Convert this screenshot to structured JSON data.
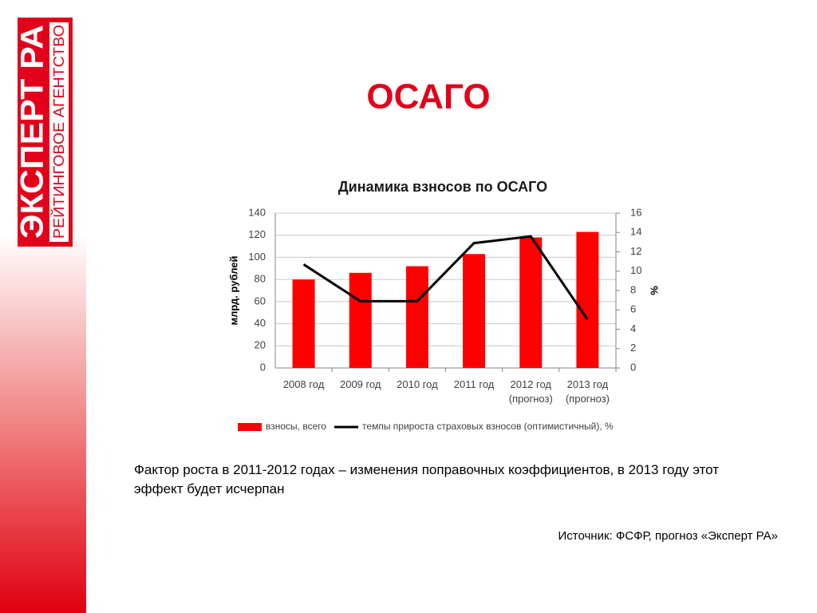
{
  "logo": {
    "name": "ЭКСПЕРТ РА",
    "tagline": "РЕЙТИНГОВОЕ АГЕНТСТВО"
  },
  "header": {
    "title": "ОСАГО"
  },
  "chart_data": {
    "type": "bar",
    "title": "Динамика взносов по ОСАГО",
    "categories": [
      "2008 год",
      "2009 год",
      "2010 год",
      "2011 год",
      "2012 год (прогноз)",
      "2013 год (прогноз)"
    ],
    "series": [
      {
        "name": "взносы, всего",
        "type": "bar",
        "color": "#ff0000",
        "values": [
          80,
          86,
          92,
          103,
          118,
          123
        ]
      },
      {
        "name": "темпы прироста страховых взносов (оптимистичный), %",
        "type": "line",
        "axis": "y2",
        "color": "#000000",
        "values": [
          10.7,
          6.9,
          6.9,
          12.9,
          13.6,
          5.0
        ]
      }
    ],
    "y_label": "млрд. рублей",
    "y2_label": "%",
    "ylim": [
      0,
      140
    ],
    "yticks": [
      0,
      20,
      40,
      60,
      80,
      100,
      120,
      140
    ],
    "y2lim": [
      0,
      16
    ],
    "y2ticks": [
      0,
      2,
      4,
      6,
      8,
      10,
      12,
      14,
      16
    ],
    "grid": true,
    "legend": "bottom"
  },
  "body": {
    "text": "Фактор роста в 2011-2012 годах – изменения поправочных коэффициентов, в 2013 году этот эффект будет исчерпан",
    "source": "Источник: ФСФР, прогноз «Эксперт РА»"
  }
}
